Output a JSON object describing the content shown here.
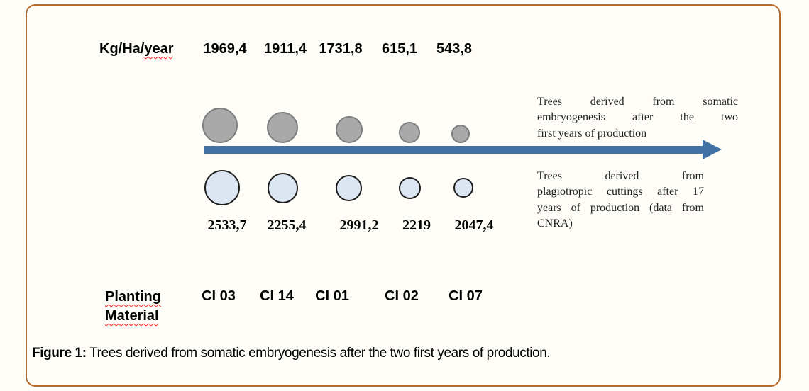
{
  "figure": {
    "yield_unit_prefix": "Kg/Ha/",
    "yield_unit_suffix": "year",
    "row_label_line1": "Planting",
    "row_label_line2": "Material",
    "caption_label": "Figure 1:",
    "caption_text": " Trees derived from somatic embryogenesis after the two first years of production.",
    "annotation_top": {
      "lines": [
        "Trees derived from somatic",
        "embryogenesis after the two",
        "first years of production"
      ]
    },
    "annotation_bottom": {
      "lines": [
        "Trees derived from",
        "plagiotropic cuttings after 17",
        "years of production (data from",
        "CNRA)"
      ]
    }
  },
  "chart_data": {
    "type": "bubble",
    "title": "Trees derived from somatic embryogenesis after the two first years of production",
    "unit_label": "Kg/Ha/year",
    "category_axis_label": "Planting Material",
    "categories": [
      "CI 03",
      "CI 14",
      "CI 01",
      "CI 02",
      "CI 07"
    ],
    "series": [
      {
        "name": "Trees derived from somatic embryogenesis after the two first years of production",
        "values": [
          1969.4,
          1911.4,
          1731.8,
          615.1,
          543.8
        ],
        "labels": [
          "1969,4",
          "1911,4",
          "1731,8",
          "615,1",
          "543,8"
        ]
      },
      {
        "name": "Trees derived from plagiotropic cuttings after 17 years of production (data from CNRA)",
        "values": [
          2533.7,
          2255.4,
          2991.2,
          2219,
          2047.4
        ],
        "labels": [
          "2533,7",
          "2255,4",
          "2991,2",
          "2219",
          "2047,4"
        ]
      }
    ],
    "legend_position": "right",
    "colors": {
      "somatic_bubble_fill": "#a9a9a9",
      "somatic_bubble_stroke": "#7d7d7d",
      "cuttings_bubble_fill": "#dce6f2",
      "cuttings_bubble_stroke": "#1c1c1c",
      "arrow": "#4271a3",
      "frame_border": "#b5682a",
      "spellcheck_squiggle": "#ff1f1f"
    }
  }
}
